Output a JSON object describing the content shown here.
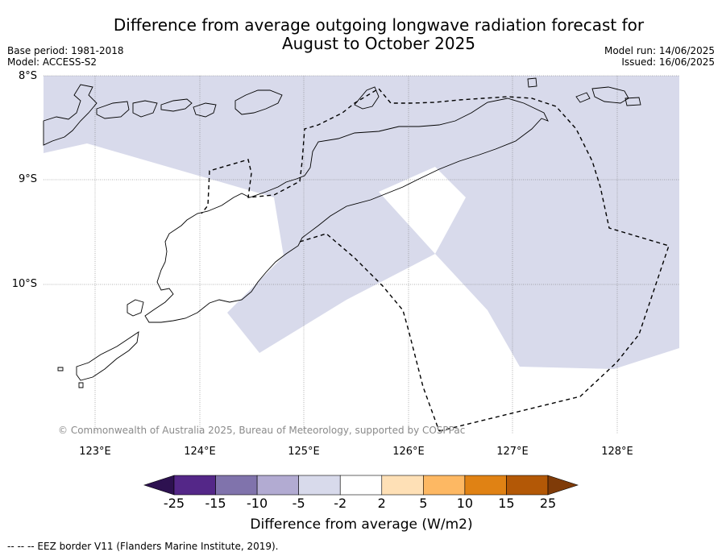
{
  "title_line1": "Difference from average outgoing longwave radiation forecast for",
  "title_line2": "August to October 2025",
  "base_period": "Base period: 1981-2018",
  "model": "Model: ACCESS-S2",
  "model_run": "Model run: 14/06/2025",
  "issued": "Issued: 16/06/2025",
  "lat_labels": [
    "8°S",
    "9°S",
    "10°S"
  ],
  "lon_labels": [
    "123°E",
    "124°E",
    "125°E",
    "126°E",
    "127°E",
    "128°E"
  ],
  "copyright": "© Commonwealth of Australia 2025, Bureau of Meteorology, supported by COSPPac",
  "colorbar": {
    "ticks": [
      "-25",
      "-15",
      "-10",
      "-5",
      "-2",
      "2",
      "5",
      "10",
      "15",
      "25"
    ],
    "colors": [
      "#2d1150",
      "#542788",
      "#8073ac",
      "#b2abd2",
      "#d8daeb",
      "#ffffff",
      "#fee0b6",
      "#fdb863",
      "#e08214",
      "#b35806",
      "#7f3b08"
    ],
    "label": "Difference from average (W/m2)"
  },
  "footer": "--  --  -- EEZ border V11 (Flanders Marine Institute, 2019)."
}
